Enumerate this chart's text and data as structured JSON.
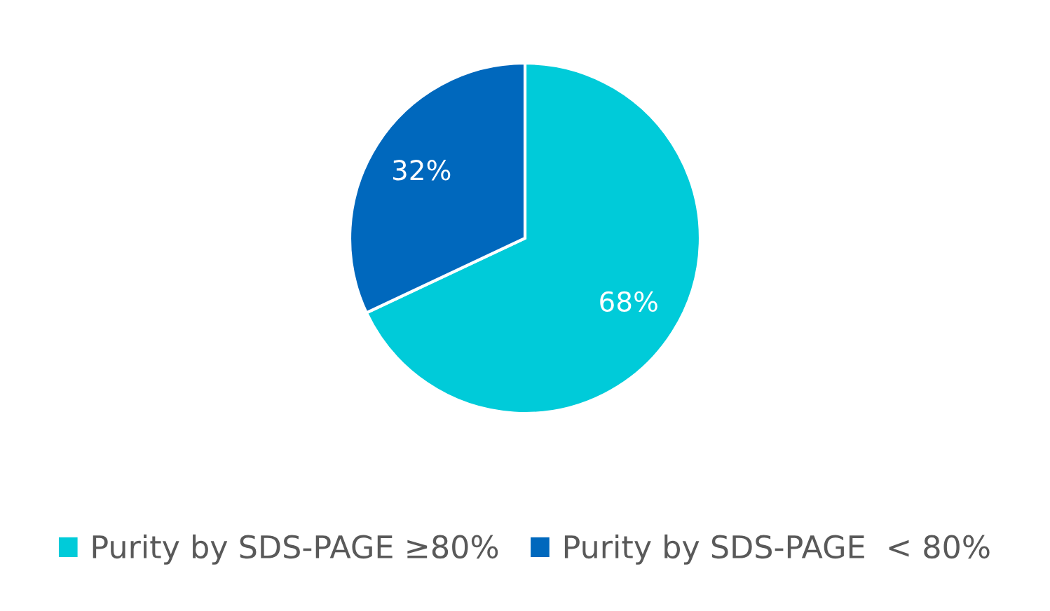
{
  "chart_data": {
    "type": "pie",
    "categories": [
      "Purity by SDS-PAGE ≥80%",
      "Purity by SDS-PAGE  < 80%"
    ],
    "values": [
      68,
      32
    ],
    "colors": [
      "#00cbd9",
      "#0068bd"
    ],
    "value_labels": [
      "68%",
      "32%"
    ],
    "legend": "bottom"
  }
}
